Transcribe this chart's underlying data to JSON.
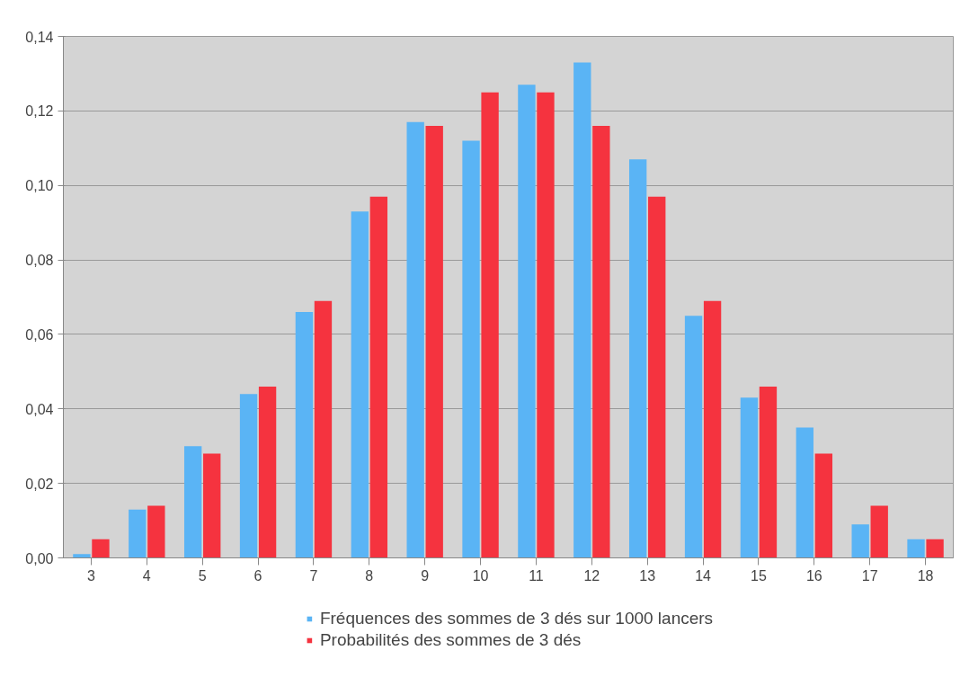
{
  "chart_data": {
    "type": "bar",
    "categories": [
      "3",
      "4",
      "5",
      "6",
      "7",
      "8",
      "9",
      "10",
      "11",
      "12",
      "13",
      "14",
      "15",
      "16",
      "17",
      "18"
    ],
    "series": [
      {
        "name": "Fréquences des sommes de 3 dés sur 1000 lancers",
        "color": "#5ab4f5",
        "values": [
          0.001,
          0.013,
          0.03,
          0.044,
          0.066,
          0.093,
          0.117,
          0.112,
          0.127,
          0.133,
          0.107,
          0.065,
          0.043,
          0.035,
          0.009,
          0.005
        ]
      },
      {
        "name": "Probabilités des sommes de 3 dés",
        "color": "#f5333f",
        "values": [
          0.005,
          0.014,
          0.028,
          0.046,
          0.069,
          0.097,
          0.116,
          0.125,
          0.125,
          0.116,
          0.097,
          0.069,
          0.046,
          0.028,
          0.014,
          0.005
        ]
      }
    ],
    "ylim": [
      0,
      0.14
    ],
    "yticks": [
      {
        "value": 0,
        "label": "0,00"
      },
      {
        "value": 0.02,
        "label": "0,02"
      },
      {
        "value": 0.04,
        "label": "0,04"
      },
      {
        "value": 0.06,
        "label": "0,06"
      },
      {
        "value": 0.08,
        "label": "0,08"
      },
      {
        "value": 0.1,
        "label": "0,10"
      },
      {
        "value": 0.12,
        "label": "0,12"
      },
      {
        "value": 0.14,
        "label": "0,14"
      }
    ],
    "grid": "y",
    "legend": "bottom"
  }
}
